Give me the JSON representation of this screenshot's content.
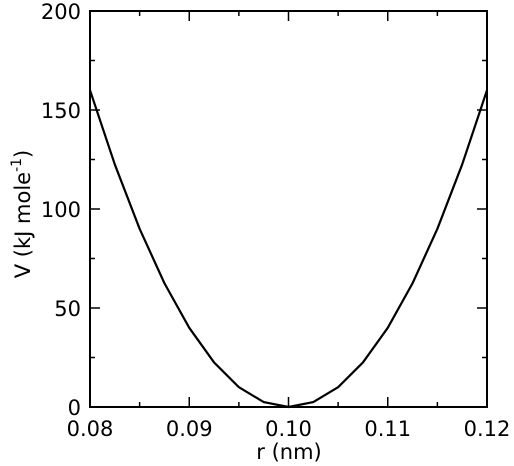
{
  "chart_data": {
    "type": "line",
    "x_label": "r (nm)",
    "y_label": {
      "text": "V (kJ mole",
      "superscript": "-1",
      "suffix": ")"
    },
    "x": [
      0.08,
      0.0825,
      0.085,
      0.0875,
      0.09,
      0.0925,
      0.095,
      0.0975,
      0.1,
      0.1025,
      0.105,
      0.1075,
      0.11,
      0.1125,
      0.115,
      0.1175,
      0.12
    ],
    "series": [
      {
        "name": "V",
        "color": "#000000",
        "values": [
          160,
          122.5,
          90,
          62.5,
          40,
          22.5,
          10,
          2.5,
          0,
          2.5,
          10,
          22.5,
          40,
          62.5,
          90,
          122.5,
          160
        ]
      }
    ],
    "xlim": [
      0.08,
      0.12
    ],
    "xticks": [
      0.08,
      0.09,
      {
        "value": 0.1,
        "label": "0.10"
      },
      0.11,
      0.12
    ],
    "xminorticks": [
      0.085,
      0.095,
      0.105,
      0.115
    ],
    "ylim": [
      0,
      200
    ],
    "yticks": [
      0,
      50,
      100,
      150,
      200
    ],
    "yminorticks": [
      25,
      75,
      125,
      175
    ],
    "grid": false
  }
}
